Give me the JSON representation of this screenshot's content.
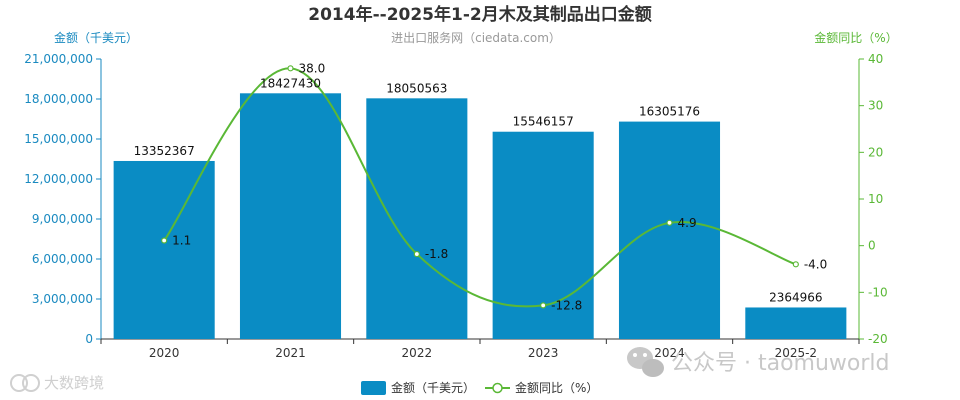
{
  "chart_data": {
    "type": "bar",
    "title": "2014年--2025年1-2月木及其制品出口金额",
    "subtitle": "进出口服务网（ciedata.com）",
    "categories": [
      "2020",
      "2021",
      "2022",
      "2023",
      "2024",
      "2025-2"
    ],
    "series": [
      {
        "name": "金额（千美元）",
        "type": "bar",
        "axis": "left",
        "color": "#0a8cc4",
        "values": [
          13352367,
          18427430,
          18050563,
          15546157,
          16305176,
          2364966
        ],
        "labels": [
          "13352367",
          "18427430",
          "18050563",
          "15546157",
          "16305176",
          "2364966"
        ]
      },
      {
        "name": "金额同比（%）",
        "type": "line",
        "axis": "right",
        "color": "#5ab836",
        "smooth": true,
        "values": [
          1.1,
          38.0,
          -1.8,
          -12.8,
          4.9,
          -4.0
        ],
        "labels": [
          "1.1",
          "38.0",
          "-1.8",
          "-12.8",
          "4.9",
          "-4.0"
        ]
      }
    ],
    "y_left": {
      "label": "金额（千美元）",
      "color": "#1a8ac0",
      "ylim": [
        0,
        21000000
      ],
      "ticks": [
        0,
        3000000,
        6000000,
        9000000,
        12000000,
        15000000,
        18000000,
        21000000
      ],
      "tick_labels": [
        "0",
        "3,000,000",
        "6,000,000",
        "9,000,000",
        "12,000,000",
        "15,000,000",
        "18,000,000",
        "21,000,000"
      ]
    },
    "y_right": {
      "label": "金额同比（%）",
      "color": "#5ab836",
      "ylim": [
        -20,
        40
      ],
      "ticks": [
        -20,
        -10,
        0,
        10,
        20,
        30,
        40
      ],
      "tick_labels": [
        "-20",
        "-10",
        "0",
        "10",
        "20",
        "30",
        "40"
      ]
    },
    "grid": false,
    "legend": {
      "position": "bottom-center"
    }
  },
  "watermarks": {
    "right": "公众号 · taomuworld",
    "left": "大数跨境"
  }
}
